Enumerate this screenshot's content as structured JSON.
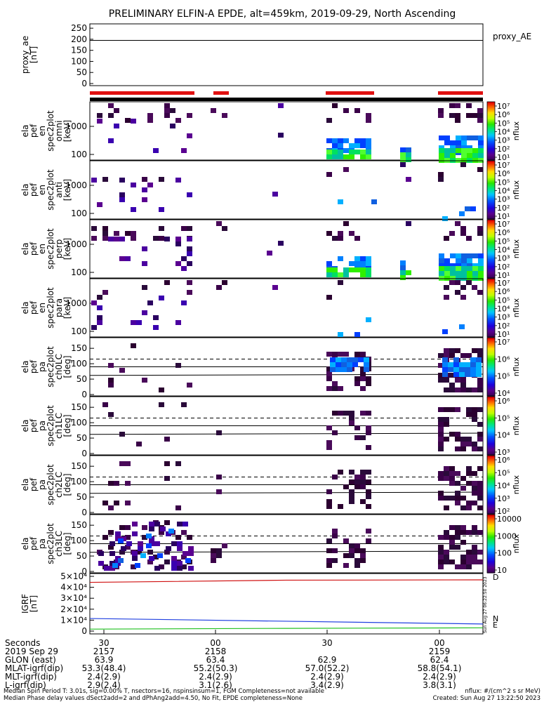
{
  "title": "PRELIMINARY ELFIN-A EPDE, alt=459km, 2019-09-29, North Ascending",
  "chart_data": [
    {
      "type": "line",
      "panel": "proxy_ae",
      "ylabel": [
        "proxy_ae",
        "[nT]"
      ],
      "legend": "proxy_AE",
      "yticks": [
        "250",
        "200",
        "150",
        "100",
        "50",
        "0"
      ],
      "ylim": [
        0,
        260
      ],
      "series": [
        {
          "name": "proxy_AE",
          "values": [
            195,
            195
          ]
        }
      ]
    },
    {
      "type": "heatmap",
      "panel": "omni",
      "ylabel": [
        "ela",
        "pef",
        "en",
        "spec2plot",
        "omni",
        "[keV]"
      ],
      "yticks": [
        "1000",
        "100"
      ],
      "colorbar": {
        "label": "nflux",
        "ticks": [
          "10⁷",
          "10⁶",
          "10⁵",
          "10⁴",
          "10³",
          "10²",
          "10¹"
        ]
      }
    },
    {
      "type": "heatmap",
      "panel": "anti",
      "ylabel": [
        "ela",
        "pef",
        "en",
        "spec2plot",
        "anti",
        "[keV]"
      ],
      "yticks": [
        "1000",
        "100"
      ],
      "colorbar": {
        "label": "nflux",
        "ticks": [
          "10⁷",
          "10⁶",
          "10⁵",
          "10⁴",
          "10³",
          "10²",
          "10¹"
        ]
      }
    },
    {
      "type": "heatmap",
      "panel": "perp",
      "ylabel": [
        "ela",
        "pef",
        "en",
        "spec2plot",
        "perp",
        "[keV]"
      ],
      "yticks": [
        "1000",
        "100"
      ],
      "colorbar": {
        "label": "nflux",
        "ticks": [
          "10⁷",
          "10⁶",
          "10⁵",
          "10⁴",
          "10³",
          "10²",
          "10¹"
        ]
      }
    },
    {
      "type": "heatmap",
      "panel": "para",
      "ylabel": [
        "ela",
        "pef",
        "en",
        "spec2plot",
        "para",
        "[keV]"
      ],
      "yticks": [
        "1000",
        "100"
      ],
      "colorbar": {
        "label": "nflux",
        "ticks": [
          "10⁷",
          "10⁶",
          "10⁵",
          "10⁴",
          "10³",
          "10²",
          "10¹"
        ]
      }
    },
    {
      "type": "heatmap",
      "panel": "ch0LC",
      "ylabel": [
        "ela",
        "pef",
        "pa",
        "spec2plot",
        "ch0LC",
        "[deg]"
      ],
      "yticks": [
        "150",
        "100",
        "50",
        "0"
      ],
      "colorbar": {
        "label": "nflux",
        "ticks": [
          "10⁷",
          "10⁶",
          "10⁵",
          "10⁴"
        ]
      }
    },
    {
      "type": "heatmap",
      "panel": "ch1LC",
      "ylabel": [
        "ela",
        "pef",
        "pa",
        "spec2plot",
        "ch1LC",
        "[deg]"
      ],
      "yticks": [
        "150",
        "100",
        "50",
        "0"
      ],
      "colorbar": {
        "label": "nflux",
        "ticks": [
          "10⁶",
          "10⁵",
          "10⁴",
          "10³"
        ]
      }
    },
    {
      "type": "heatmap",
      "panel": "ch2LC",
      "ylabel": [
        "ela",
        "pef",
        "pa",
        "spec2plot",
        "ch2LC",
        "[deg]"
      ],
      "yticks": [
        "150",
        "100",
        "50",
        "0"
      ],
      "colorbar": {
        "label": "nflux",
        "ticks": [
          "10⁶",
          "10⁵",
          "10⁴",
          "10³",
          "10²"
        ]
      }
    },
    {
      "type": "heatmap",
      "panel": "ch3LC",
      "ylabel": [
        "ela",
        "pef",
        "pa",
        "spec2plot",
        "ch3LC",
        "[deg]"
      ],
      "yticks": [
        "150",
        "100",
        "50",
        "0"
      ],
      "colorbar": {
        "label": "nflux",
        "ticks": [
          "10000",
          "1000",
          "100",
          "10"
        ]
      }
    },
    {
      "type": "line",
      "panel": "IGRF",
      "ylabel": [
        "IGRF",
        "[nT]"
      ],
      "yticks": [
        "5×10⁴",
        "4×10⁴",
        "3×10⁴",
        "2×10⁴",
        "1×10⁴",
        "0"
      ],
      "ylim": [
        0,
        50000
      ],
      "legend": [
        "D",
        "N",
        "E"
      ],
      "series": [
        {
          "name": "D",
          "values": [
            44500,
            46500,
            46800
          ]
        },
        {
          "name": "N",
          "values": [
            11500,
            9000,
            6500
          ]
        },
        {
          "name": "E",
          "values": [
            1800,
            2500,
            3000
          ]
        }
      ]
    }
  ],
  "axis": {
    "rows": [
      {
        "label": "Seconds",
        "values": [
          "30",
          "00",
          "30",
          "00"
        ]
      },
      {
        "label": "2019 Sep 29",
        "values": [
          "2157",
          "2158",
          "2159"
        ]
      },
      {
        "label": "GLON (east)",
        "values": [
          "63.9",
          "63.4",
          "62.9",
          "62.4"
        ]
      },
      {
        "label": "MLAT-igrf(dip)",
        "values": [
          "53.3(48.4)",
          "55.2(50.3)",
          "57.0(52.2)",
          "58.8(54.1)"
        ]
      },
      {
        "label": "MLT-igrf(dip)",
        "values": [
          "2.4(2.9)",
          "2.4(2.9)",
          "2.4(2.9)",
          "2.4(2.9)"
        ]
      },
      {
        "label": "L-igrf(dip)",
        "values": [
          "2.9(2.4)",
          "3.1(2.6)",
          "3.4(2.9)",
          "3.8(3.1)"
        ]
      }
    ]
  },
  "footer": {
    "line1_left": "Median Spin Period T: 3.01s, sig=0.00% T, nsectors=16, nspinsinsum=1, FGM Completeness=not available",
    "line1_right": "nflux: #/(cm^2 s sr MeV)",
    "line2_left": "Median Phase delay values dSect2add=2 and dPhAng2add=4.50, No Fit, EPDE completeness=None",
    "line2_right": "Created: Sun Aug 27 13:22:50 2023",
    "side_stamp": "Sun Aug 27 06:22:50 2023"
  },
  "colors": {
    "bar": "#e01010",
    "d_line": "#d01010",
    "n_line": "#2040e0",
    "e_line": "#20c020"
  }
}
